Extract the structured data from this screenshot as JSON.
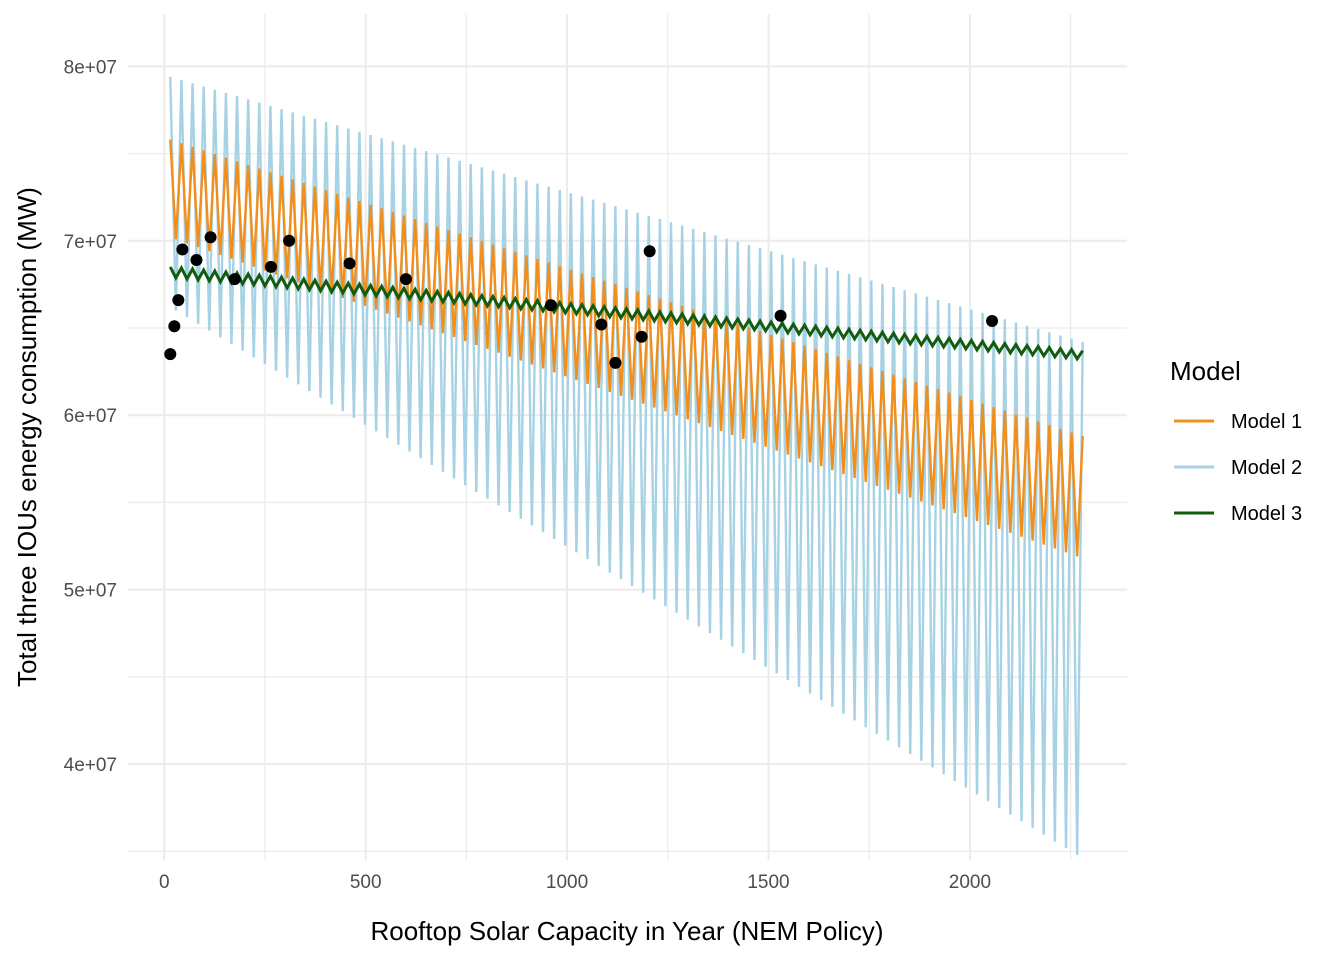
{
  "chart_data": {
    "type": "line",
    "title": "",
    "xlabel": "Rooftop Solar Capacity in Year (NEM Policy)",
    "ylabel": "Total three IOUs energy consumption (MW)",
    "xlim": [
      -90,
      2390
    ],
    "ylim": [
      34500000,
      83000000
    ],
    "x_ticks": [
      0,
      500,
      1000,
      1500,
      2000
    ],
    "x_tick_labels": [
      "0",
      "500",
      "1000",
      "1500",
      "2000"
    ],
    "y_ticks": [
      40000000,
      50000000,
      60000000,
      70000000,
      80000000
    ],
    "y_tick_labels": [
      "4e+07",
      "5e+07",
      "6e+07",
      "7e+07",
      "8e+07"
    ],
    "grid": true,
    "legend": {
      "title": "Model",
      "position": "right",
      "entries": [
        {
          "label": "Model 1",
          "color": "#f28e1c"
        },
        {
          "label": "Model 2",
          "color": "#a6d2e4"
        },
        {
          "label": "Model 3",
          "color": "#125c0f"
        }
      ]
    },
    "series": [
      {
        "name": "Model 2",
        "kind": "oscillating-band",
        "color": "#a6d2e4",
        "x_start": 15,
        "x_end": 2280,
        "cycles": 82,
        "upper_start": 79400000,
        "upper_end": 64200000,
        "lower_start": 66200000,
        "lower_end": 34600000
      },
      {
        "name": "Model 1",
        "kind": "oscillating-band",
        "color": "#f28e1c",
        "x_start": 15,
        "x_end": 2280,
        "cycles": 82,
        "upper_start": 75800000,
        "upper_end": 58800000,
        "lower_start": 70200000,
        "lower_end": 51800000
      },
      {
        "name": "Model 3",
        "kind": "oscillating-band",
        "color": "#125c0f",
        "x_start": 15,
        "x_end": 2280,
        "cycles": 82,
        "upper_start": 68500000,
        "upper_end": 63700000,
        "lower_start": 67900000,
        "lower_end": 63200000
      }
    ],
    "points": [
      {
        "x": 15,
        "y": 63500000
      },
      {
        "x": 25,
        "y": 65100000
      },
      {
        "x": 35,
        "y": 66600000
      },
      {
        "x": 45,
        "y": 69500000
      },
      {
        "x": 80,
        "y": 68900000
      },
      {
        "x": 115,
        "y": 70200000
      },
      {
        "x": 175,
        "y": 67800000
      },
      {
        "x": 265,
        "y": 68500000
      },
      {
        "x": 310,
        "y": 70000000
      },
      {
        "x": 460,
        "y": 68700000
      },
      {
        "x": 600,
        "y": 67800000
      },
      {
        "x": 960,
        "y": 66300000
      },
      {
        "x": 1085,
        "y": 65200000
      },
      {
        "x": 1120,
        "y": 63000000
      },
      {
        "x": 1185,
        "y": 64500000
      },
      {
        "x": 1205,
        "y": 69400000
      },
      {
        "x": 1530,
        "y": 65700000
      },
      {
        "x": 2055,
        "y": 65400000
      }
    ]
  }
}
